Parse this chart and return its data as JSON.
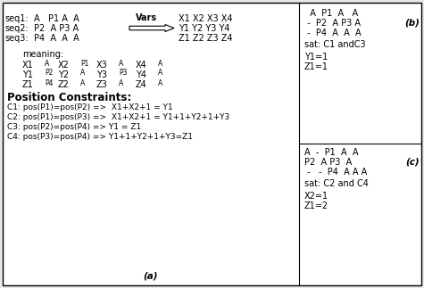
{
  "bg_color": "#e8e8e8",
  "panel_bg": "#ffffff",
  "border_color": "#000000",
  "panel_a": {
    "meaning_rows": [
      [
        "X1",
        "A",
        "X2",
        "P1",
        "X3",
        "A",
        "X4",
        "A"
      ],
      [
        "Y1",
        "P2",
        "Y2",
        "A",
        "Y3",
        "P3",
        "Y4",
        "A"
      ],
      [
        "Z1",
        "P4",
        "Z2",
        "A",
        "Z3",
        "A",
        "Z4",
        "A"
      ]
    ],
    "constraints": [
      "C1: pos(P1)=pos(P2) =>  X1+X2+1 = Y1",
      "C2: pos(P1)=pos(P3) =>  X1+X2+1 = Y1+1+Y2+1+Y3",
      "C3: pos(P2)=pos(P4) => Y1 = Z1",
      "C4: pos(P3)=pos(P4) => Y1+1+Y2+1+Y3=Z1"
    ],
    "label": "(a)"
  },
  "panel_b": {
    "lines": [
      "  A  P1  A   A",
      " -  P2  A P3 A",
      " -  P4  A  A  A"
    ],
    "sat": "sat: C1 andC3",
    "vals": [
      "Y1=1",
      "Z1=1"
    ],
    "label": "(b)"
  },
  "panel_c": {
    "lines": [
      "A  -  P1  A  A",
      "P2  A P3  A",
      " -   -  P4  A A A"
    ],
    "sat": "sat: C2 and C4",
    "vals": [
      "X2=1",
      "Z1=2"
    ],
    "label": "(c)"
  }
}
